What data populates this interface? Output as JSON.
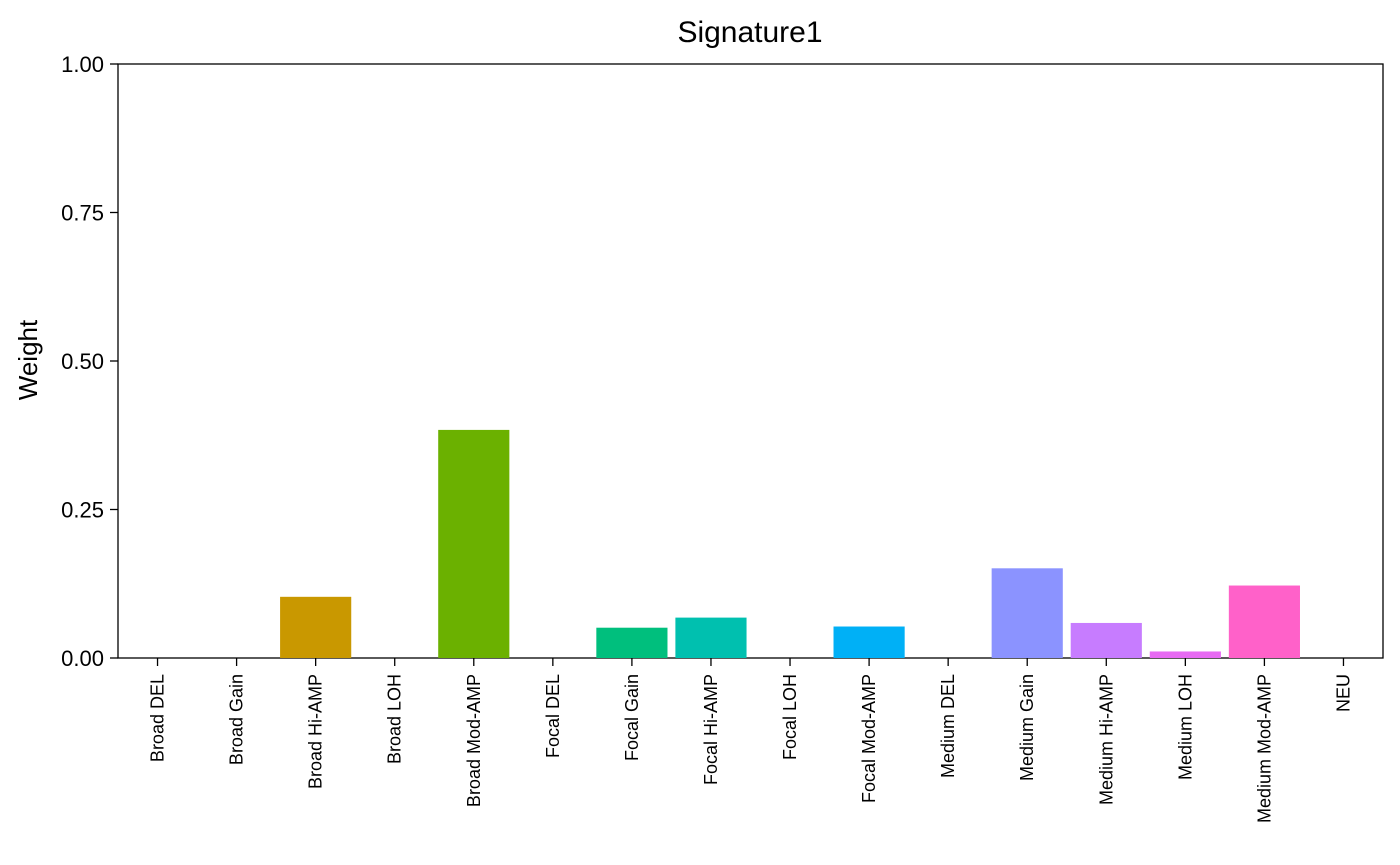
{
  "chart_data": {
    "type": "bar",
    "title": "Signature1",
    "xlabel": "",
    "ylabel": "Weight",
    "ylim": [
      0,
      1
    ],
    "yticks": [
      "0.00",
      "0.25",
      "0.50",
      "0.75",
      "1.00"
    ],
    "grid": false,
    "legend": "none",
    "categories": [
      "Broad DEL",
      "Broad Gain",
      "Broad Hi-AMP",
      "Broad LOH",
      "Broad Mod-AMP",
      "Focal DEL",
      "Focal Gain",
      "Focal Hi-AMP",
      "Focal LOH",
      "Focal Mod-AMP",
      "Medium DEL",
      "Medium Gain",
      "Medium Hi-AMP",
      "Medium LOH",
      "Medium Mod-AMP",
      "NEU"
    ],
    "values": [
      0.0,
      0.0,
      0.103,
      0.0,
      0.384,
      0.0,
      0.051,
      0.068,
      0.0,
      0.053,
      0.0,
      0.151,
      0.059,
      0.011,
      0.122,
      0.0
    ],
    "colors": [
      "#F8766D",
      "#E58700",
      "#C99800",
      "#A3A500",
      "#6BB100",
      "#00BA38",
      "#00BF7D",
      "#00C0AF",
      "#00BCD8",
      "#00B0F6",
      "#619CFF",
      "#8B93FF",
      "#C77CFF",
      "#E76BF3",
      "#FF61C9",
      "#FF6C91"
    ]
  }
}
